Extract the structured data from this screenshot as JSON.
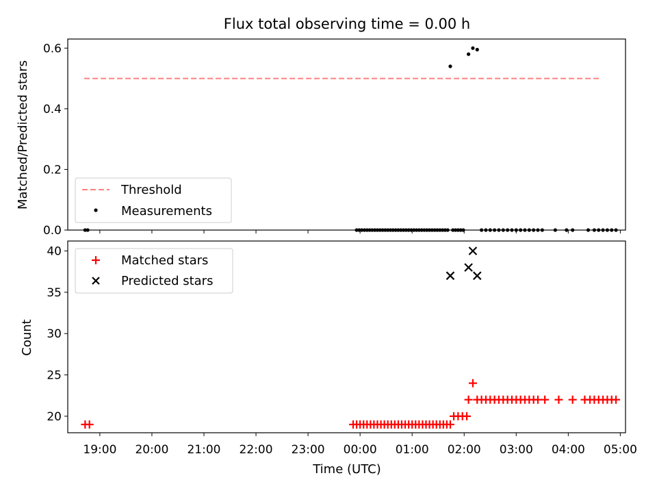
{
  "title": "Flux total observing time = 0.00 h",
  "chart_data": [
    {
      "type": "scatter",
      "panel": "top",
      "xlabel": "",
      "ylabel": "Matched/Predicted stars",
      "xlim": [
        "18:23",
        "05:06"
      ],
      "ylim": [
        0,
        0.63
      ],
      "yticks": [
        0.0,
        0.2,
        0.4,
        0.6
      ],
      "ytick_labels": [
        "0.0",
        "0.2",
        "0.4",
        "0.6"
      ],
      "legend": {
        "placement": "lower left",
        "entries": [
          "Threshold",
          "Measurements"
        ]
      },
      "grid": false,
      "series": [
        {
          "name": "Threshold",
          "kind": "dashed-line",
          "color": "#ff7f7f",
          "x": [
            "18:42",
            "04:38"
          ],
          "y": [
            0.5,
            0.5
          ]
        },
        {
          "name": "Measurements",
          "kind": "dots",
          "color": "#000000",
          "x": [
            "18:43",
            "18:46",
            "23:56",
            "23:59",
            "00:02",
            "00:05",
            "00:08",
            "00:11",
            "00:14",
            "00:17",
            "00:20",
            "00:23",
            "00:26",
            "00:29",
            "00:32",
            "00:35",
            "00:38",
            "00:41",
            "00:44",
            "00:47",
            "00:50",
            "00:53",
            "00:56",
            "00:59",
            "01:02",
            "01:05",
            "01:08",
            "01:11",
            "01:14",
            "01:17",
            "01:20",
            "01:23",
            "01:26",
            "01:29",
            "01:32",
            "01:35",
            "01:38",
            "01:41",
            "01:44",
            "01:47",
            "01:50",
            "01:53",
            "01:56",
            "01:59",
            "02:05",
            "02:10",
            "02:15",
            "02:20",
            "02:25",
            "02:30",
            "02:35",
            "02:40",
            "02:45",
            "02:50",
            "02:55",
            "03:00",
            "03:05",
            "03:10",
            "03:15",
            "03:20",
            "03:25",
            "03:30",
            "03:45",
            "03:58",
            "04:05",
            "04:23",
            "04:30",
            "04:35",
            "04:40",
            "04:45",
            "04:50",
            "04:55"
          ],
          "y": [
            0,
            0,
            0,
            0,
            0,
            0,
            0,
            0,
            0,
            0,
            0,
            0,
            0,
            0,
            0,
            0,
            0,
            0,
            0,
            0,
            0,
            0,
            0,
            0,
            0,
            0,
            0,
            0,
            0,
            0,
            0,
            0,
            0,
            0,
            0,
            0,
            0,
            0,
            0.54,
            0,
            0,
            0,
            0,
            0,
            0.58,
            0.6,
            0.595,
            0,
            0,
            0,
            0,
            0,
            0,
            0,
            0,
            0,
            0,
            0,
            0,
            0,
            0,
            0,
            0,
            0,
            0,
            0,
            0,
            0,
            0,
            0,
            0,
            0
          ]
        }
      ]
    },
    {
      "type": "scatter",
      "panel": "bottom",
      "xlabel": "Time (UTC)",
      "ylabel": "Count",
      "xlim": [
        "18:23",
        "05:06"
      ],
      "ylim": [
        18,
        41.2
      ],
      "yticks": [
        20,
        25,
        30,
        35,
        40
      ],
      "ytick_labels": [
        "20",
        "25",
        "30",
        "35",
        "40"
      ],
      "xticks": [
        "19:00",
        "20:00",
        "21:00",
        "22:00",
        "23:00",
        "00:00",
        "01:00",
        "02:00",
        "03:00",
        "04:00",
        "05:00"
      ],
      "legend": {
        "placement": "upper left",
        "entries": [
          "Matched stars",
          "Predicted stars"
        ]
      },
      "grid": false,
      "series": [
        {
          "name": "Matched stars",
          "marker": "+",
          "color": "#ff0000",
          "x": [
            "18:43",
            "18:48",
            "23:52",
            "23:56",
            "00:00",
            "00:04",
            "00:08",
            "00:12",
            "00:16",
            "00:20",
            "00:24",
            "00:28",
            "00:32",
            "00:36",
            "00:40",
            "00:44",
            "00:48",
            "00:52",
            "00:56",
            "01:00",
            "01:04",
            "01:08",
            "01:12",
            "01:16",
            "01:20",
            "01:24",
            "01:28",
            "01:32",
            "01:36",
            "01:40",
            "01:44",
            "01:48",
            "01:53",
            "01:58",
            "02:03",
            "02:05",
            "02:10",
            "02:15",
            "02:20",
            "02:25",
            "02:30",
            "02:35",
            "02:40",
            "02:45",
            "02:50",
            "02:55",
            "03:00",
            "03:05",
            "03:10",
            "03:15",
            "03:20",
            "03:25",
            "03:33",
            "03:49",
            "04:05",
            "04:19",
            "04:25",
            "04:30",
            "04:35",
            "04:40",
            "04:45",
            "04:50",
            "04:55"
          ],
          "y": [
            19,
            19,
            19,
            19,
            19,
            19,
            19,
            19,
            19,
            19,
            19,
            19,
            19,
            19,
            19,
            19,
            19,
            19,
            19,
            19,
            19,
            19,
            19,
            19,
            19,
            19,
            19,
            19,
            19,
            19,
            19,
            20,
            20,
            20,
            20,
            22,
            24,
            22,
            22,
            22,
            22,
            22,
            22,
            22,
            22,
            22,
            22,
            22,
            22,
            22,
            22,
            22,
            22,
            22,
            22,
            22,
            22,
            22,
            22,
            22,
            22,
            22,
            22
          ]
        },
        {
          "name": "Predicted stars",
          "marker": "x",
          "color": "#000000",
          "x": [
            "01:44",
            "02:05",
            "02:10",
            "02:15"
          ],
          "y": [
            37,
            38,
            40,
            37
          ]
        }
      ]
    }
  ]
}
